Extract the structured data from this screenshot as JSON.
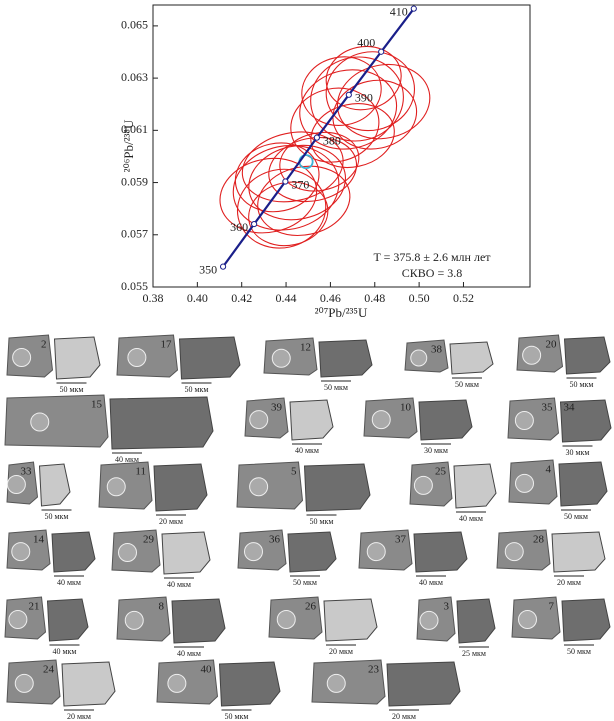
{
  "chart_data": {
    "type": "concordia",
    "x_label": "²⁰⁷Pb/²³⁵U",
    "y_label": "²⁰⁶Pb/²³⁸U",
    "xlim": [
      0.38,
      0.55
    ],
    "ylim": [
      0.055,
      0.0658
    ],
    "xticks": [
      0.38,
      {
        "value": 0.4,
        "label": "0.40"
      },
      0.42,
      0.44,
      0.46,
      0.48,
      {
        "value": 0.5,
        "label": "0.50"
      },
      0.52
    ],
    "yticks": [
      0.055,
      0.057,
      0.059,
      0.061,
      0.063,
      0.065
    ],
    "concordia": {
      "color": "#1a1f8a",
      "ages": [
        350,
        360,
        370,
        380,
        390,
        400,
        410
      ],
      "x": [
        0.4116,
        0.4256,
        0.4397,
        0.4539,
        0.4683,
        0.4829,
        0.4976
      ],
      "y": [
        0.05578,
        0.05741,
        0.05904,
        0.06072,
        0.06236,
        0.06401,
        0.06566
      ]
    },
    "ellipse_color": "#e02020",
    "ellipses": [
      {
        "x": 0.432,
        "y": 0.0585,
        "rx": 0.022,
        "ry": 0.0014
      },
      {
        "x": 0.438,
        "y": 0.058,
        "rx": 0.02,
        "ry": 0.0015
      },
      {
        "x": 0.44,
        "y": 0.0588,
        "rx": 0.024,
        "ry": 0.0016
      },
      {
        "x": 0.445,
        "y": 0.059,
        "rx": 0.022,
        "ry": 0.0014
      },
      {
        "x": 0.448,
        "y": 0.0583,
        "rx": 0.021,
        "ry": 0.0013
      },
      {
        "x": 0.452,
        "y": 0.0595,
        "rx": 0.02,
        "ry": 0.0012
      },
      {
        "x": 0.443,
        "y": 0.0596,
        "rx": 0.023,
        "ry": 0.0013
      },
      {
        "x": 0.436,
        "y": 0.0592,
        "rx": 0.019,
        "ry": 0.0013
      },
      {
        "x": 0.455,
        "y": 0.0598,
        "rx": 0.018,
        "ry": 0.0011
      },
      {
        "x": 0.441,
        "y": 0.0578,
        "rx": 0.018,
        "ry": 0.0012
      },
      {
        "x": 0.462,
        "y": 0.0612,
        "rx": 0.02,
        "ry": 0.0014
      },
      {
        "x": 0.468,
        "y": 0.0618,
        "rx": 0.022,
        "ry": 0.0015
      },
      {
        "x": 0.472,
        "y": 0.0622,
        "rx": 0.021,
        "ry": 0.0016
      },
      {
        "x": 0.478,
        "y": 0.0625,
        "rx": 0.02,
        "ry": 0.0015
      },
      {
        "x": 0.48,
        "y": 0.0616,
        "rx": 0.019,
        "ry": 0.0013
      },
      {
        "x": 0.465,
        "y": 0.0625,
        "rx": 0.018,
        "ry": 0.0013
      },
      {
        "x": 0.484,
        "y": 0.0621,
        "rx": 0.021,
        "ry": 0.0014
      },
      {
        "x": 0.47,
        "y": 0.0608,
        "rx": 0.019,
        "ry": 0.0012
      },
      {
        "x": 0.475,
        "y": 0.063,
        "rx": 0.017,
        "ry": 0.0012
      }
    ],
    "mean": {
      "x": 0.449,
      "y": 0.0598,
      "rx": 0.003,
      "ry": 0.00025,
      "color": "#3bb3d6"
    },
    "annotations": [
      "T = 375.8 ± 2.6 млн лет",
      "СКВО = 3.8"
    ]
  },
  "grains": [
    {
      "labels": [
        "2"
      ],
      "scale": "50 мкм"
    },
    {
      "labels": [
        "17"
      ],
      "scale": "50 мкм"
    },
    {
      "labels": [
        "12"
      ],
      "scale": "50 мкм"
    },
    {
      "labels": [
        "38"
      ],
      "scale": "50 мкм"
    },
    {
      "labels": [
        "20"
      ],
      "scale": "50 мкм"
    },
    {
      "labels": [
        "15"
      ],
      "scale": "40 мкм"
    },
    {
      "labels": [
        "39"
      ],
      "scale": "40 мкм"
    },
    {
      "labels": [
        "10"
      ],
      "scale": "30 мкм"
    },
    {
      "labels": [
        "35",
        "34"
      ],
      "scale": "30 мкм"
    },
    {
      "labels": [
        "33"
      ],
      "scale": "50 мкм"
    },
    {
      "labels": [
        "11"
      ],
      "scale": "20 мкм"
    },
    {
      "labels": [
        "5"
      ],
      "scale": "50 мкм"
    },
    {
      "labels": [
        "25"
      ],
      "scale": "40 мкм"
    },
    {
      "labels": [
        "4"
      ],
      "scale": "50 мкм"
    },
    {
      "labels": [
        "14"
      ],
      "scale": "40 мкм"
    },
    {
      "labels": [
        "29"
      ],
      "scale": "40 мкм"
    },
    {
      "labels": [
        "36"
      ],
      "scale": "50 мкм"
    },
    {
      "labels": [
        "37"
      ],
      "scale": "40 мкм"
    },
    {
      "labels": [
        "28"
      ],
      "scale": "20 мкм"
    },
    {
      "labels": [
        "21"
      ],
      "scale": "40 мкм"
    },
    {
      "labels": [
        "8"
      ],
      "scale": "40 мкм"
    },
    {
      "labels": [
        "26"
      ],
      "scale": "20 мкм"
    },
    {
      "labels": [
        "3"
      ],
      "scale": "25 мкм"
    },
    {
      "labels": [
        "7"
      ],
      "scale": "50 мкм"
    },
    {
      "labels": [
        "24"
      ],
      "scale": "20 мкм"
    },
    {
      "labels": [
        "40"
      ],
      "scale": "50 мкм"
    },
    {
      "labels": [
        "23"
      ],
      "scale": "20 мкм"
    }
  ]
}
